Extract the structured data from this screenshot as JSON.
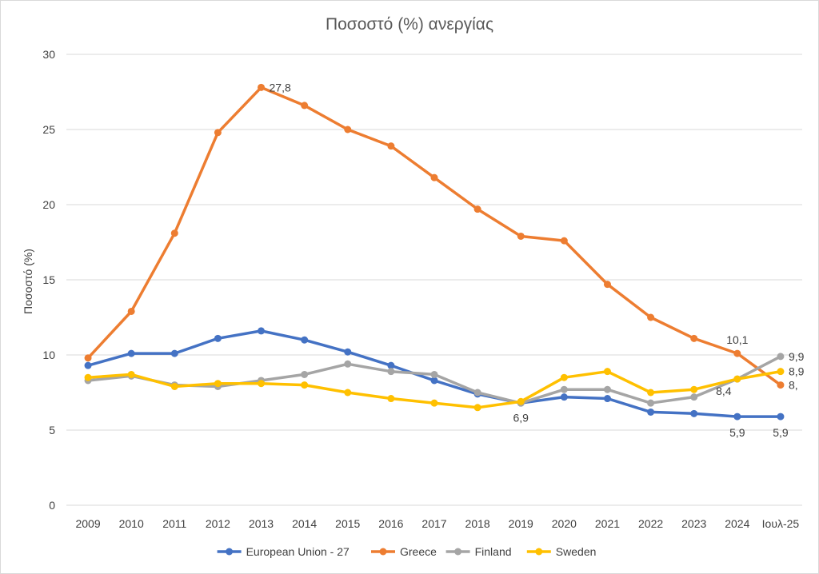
{
  "chart_data": {
    "type": "line",
    "title": "Ποσοστό (%) ανεργίας",
    "xlabel": "",
    "ylabel": "Ποσοστό (%)",
    "ylim": [
      0,
      30
    ],
    "yticks": [
      0,
      5,
      10,
      15,
      20,
      25,
      30
    ],
    "grid": "horizontal",
    "legend_position": "bottom",
    "categories": [
      "2009",
      "2010",
      "2011",
      "2012",
      "2013",
      "2014",
      "2015",
      "2016",
      "2017",
      "2018",
      "2019",
      "2020",
      "2021",
      "2022",
      "2023",
      "2024",
      "Ιουλ-25"
    ],
    "series": [
      {
        "name": "European Union - 27",
        "color": "#4472C4",
        "values": [
          9.3,
          10.1,
          10.1,
          11.1,
          11.6,
          11.0,
          10.2,
          9.3,
          8.3,
          7.4,
          6.8,
          7.2,
          7.1,
          6.2,
          6.1,
          5.9,
          5.9
        ],
        "labels": [
          {
            "index": 15,
            "text": "5,9",
            "position": "below"
          },
          {
            "index": 16,
            "text": "5,9",
            "position": "below"
          }
        ]
      },
      {
        "name": "Greece",
        "color": "#ED7D31",
        "values": [
          9.8,
          12.9,
          18.1,
          24.8,
          27.8,
          26.6,
          25.0,
          23.9,
          21.8,
          19.7,
          17.9,
          17.6,
          14.7,
          12.5,
          11.1,
          10.1,
          8.0
        ],
        "labels": [
          {
            "index": 4,
            "text": "27,8",
            "position": "right"
          },
          {
            "index": 15,
            "text": "10,1",
            "position": "above"
          },
          {
            "index": 16,
            "text": "8,",
            "position": "right"
          }
        ]
      },
      {
        "name": "Finland",
        "color": "#A5A5A5",
        "values": [
          8.3,
          8.6,
          8.0,
          7.9,
          8.3,
          8.7,
          9.4,
          8.9,
          8.7,
          7.5,
          6.8,
          7.7,
          7.7,
          6.8,
          7.2,
          8.4,
          9.9
        ],
        "labels": [
          {
            "index": 15,
            "text": "8,4",
            "position": "below-right"
          },
          {
            "index": 16,
            "text": "9,9",
            "position": "right"
          }
        ]
      },
      {
        "name": "Sweden",
        "color": "#FFC000",
        "values": [
          8.5,
          8.7,
          7.9,
          8.1,
          8.1,
          8.0,
          7.5,
          7.1,
          6.8,
          6.5,
          6.9,
          8.5,
          8.9,
          7.5,
          7.7,
          8.4,
          8.9
        ],
        "labels": [
          {
            "index": 10,
            "text": "6,9",
            "position": "below"
          },
          {
            "index": 16,
            "text": "8,9",
            "position": "right"
          }
        ]
      }
    ]
  }
}
